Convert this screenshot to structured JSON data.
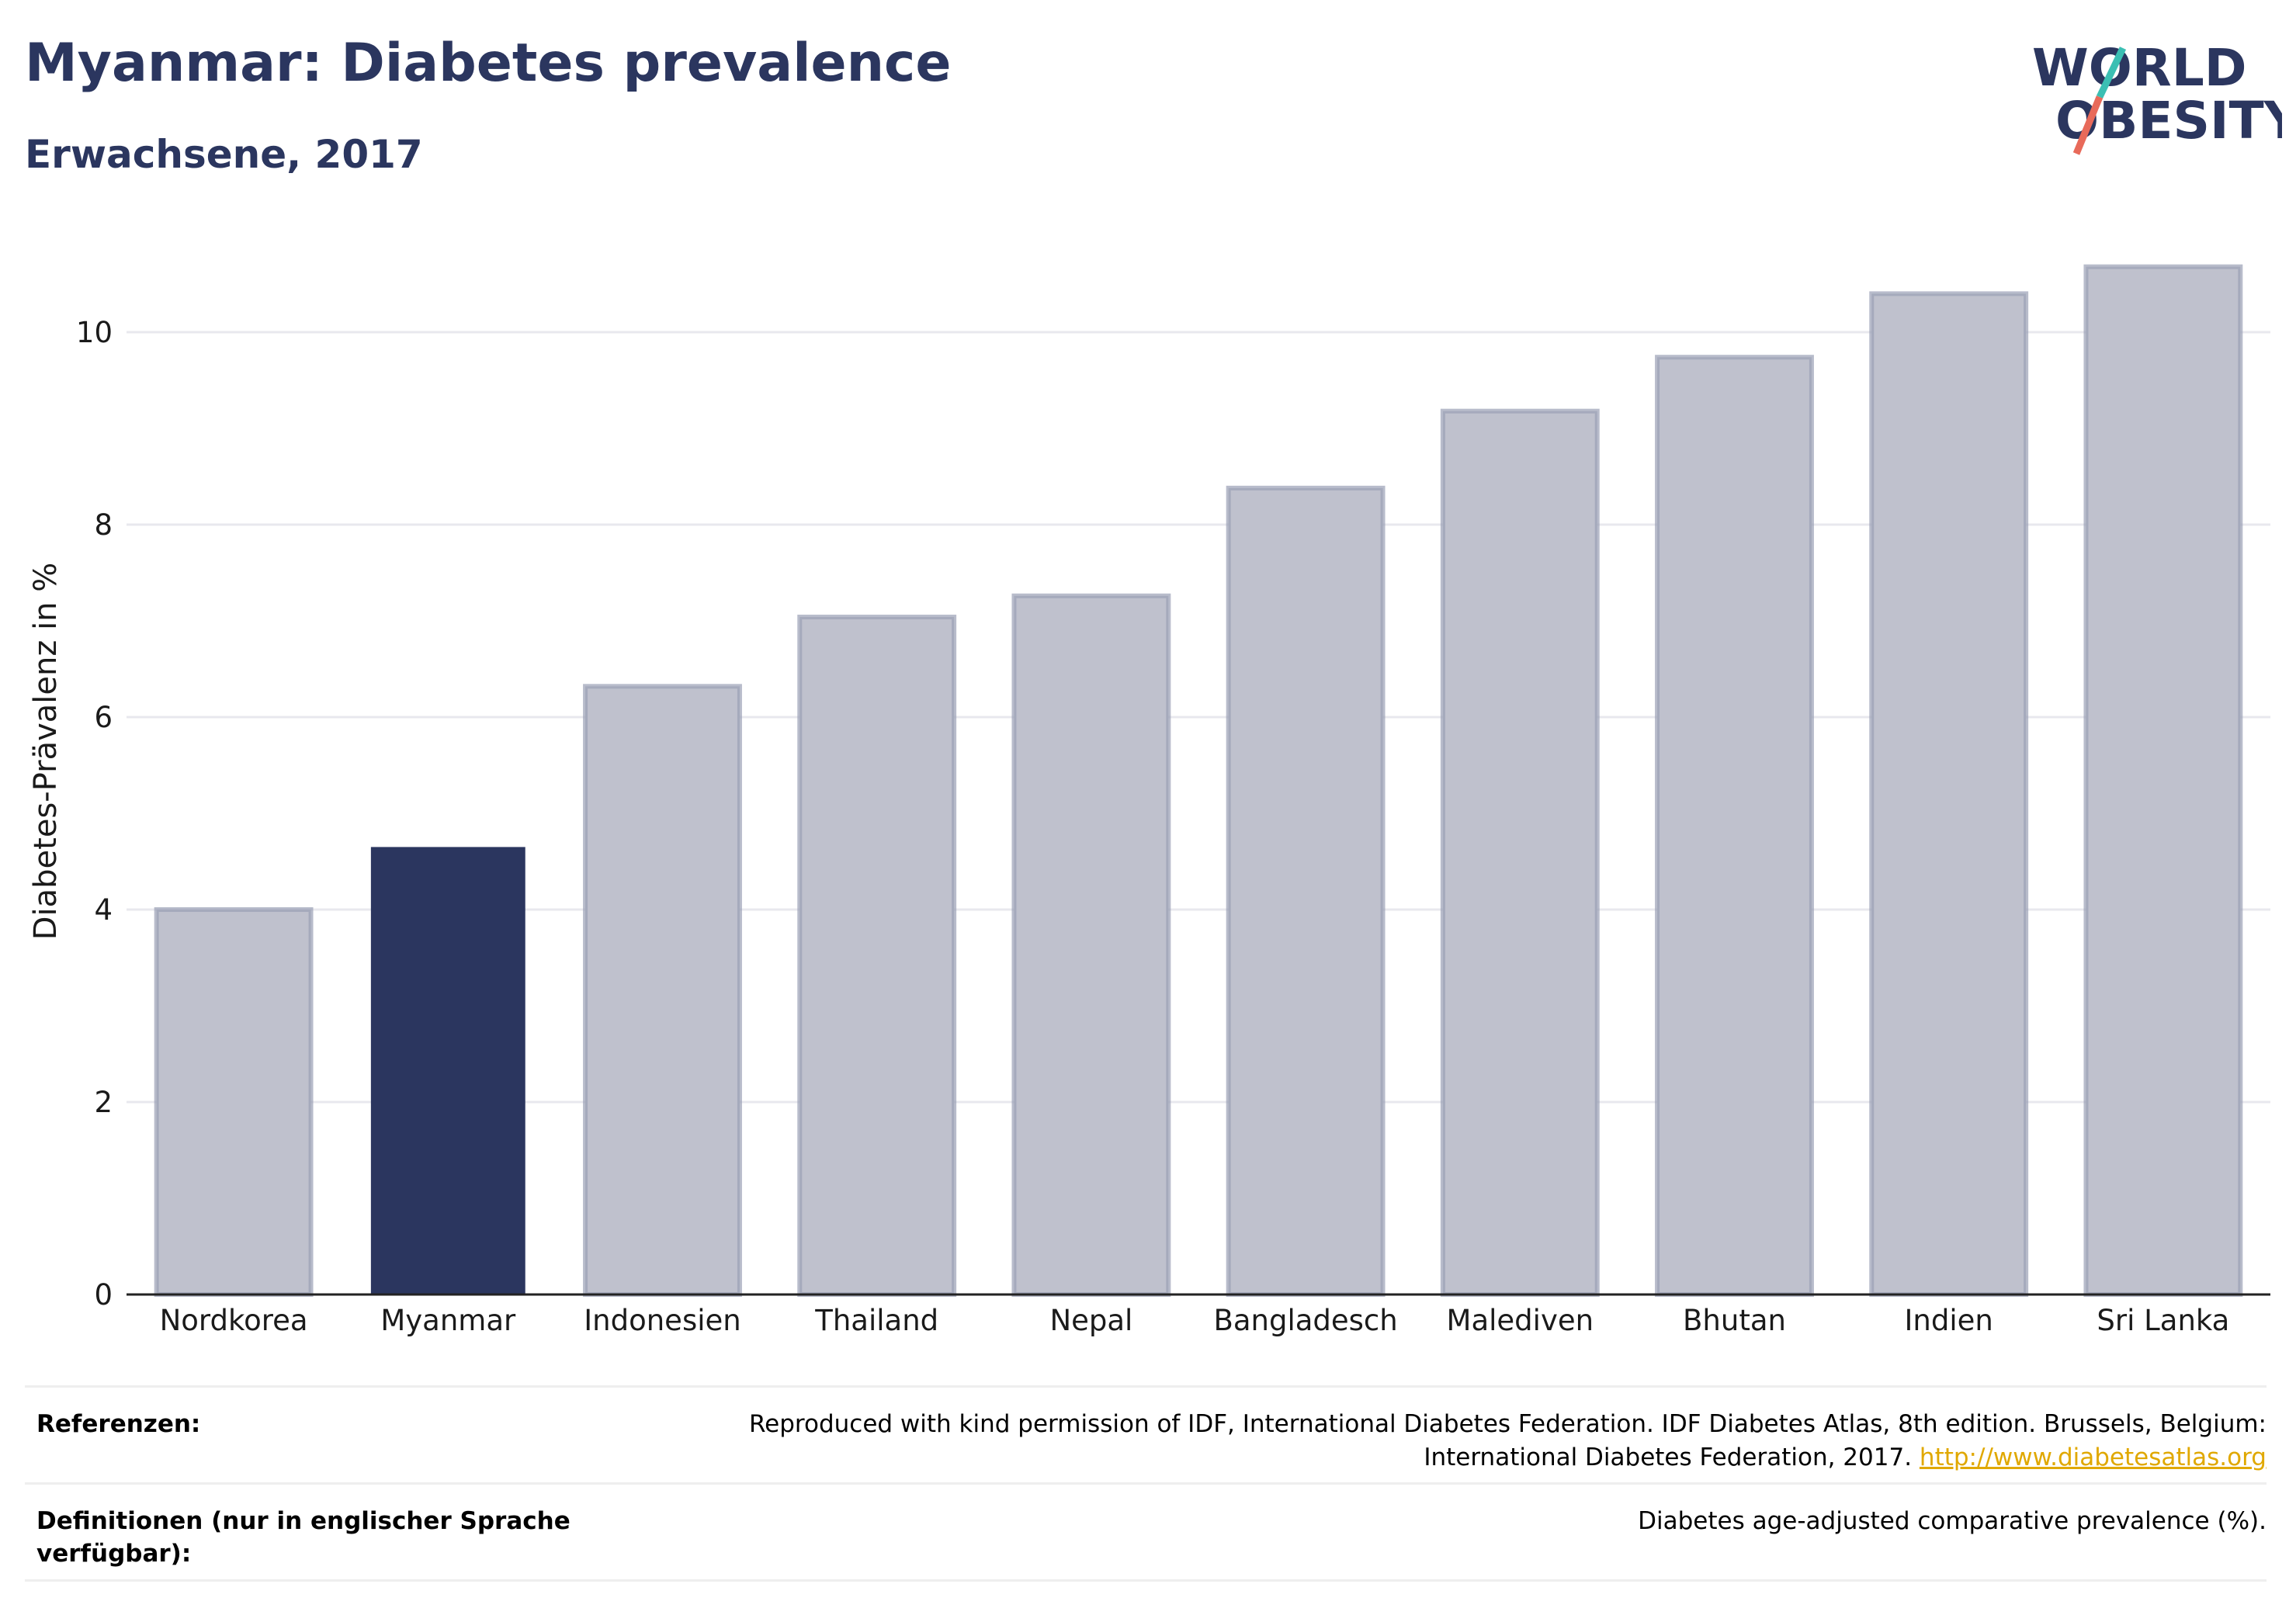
{
  "header": {
    "title": "Myanmar: Diabetes prevalence",
    "subtitle": "Erwachsene, 2017"
  },
  "logo": {
    "line1": "WORLD",
    "line2": "OBESITY",
    "icon": "world-obesity-logo"
  },
  "colors": {
    "highlight": "#2b365f",
    "others": "#bfc1cd",
    "others_border": "#9a9fb5",
    "brand_teal": "#3bbfb3",
    "brand_coral": "#e86a5a"
  },
  "chart_data": {
    "type": "bar",
    "title": "",
    "ylabel": "Diabetes-Prävalenz in %",
    "xlabel": "",
    "ylim": [
      0,
      11
    ],
    "yticks": [
      0,
      2,
      4,
      6,
      8,
      10
    ],
    "grid": true,
    "highlight": "Myanmar",
    "categories": [
      "Nordkorea",
      "Myanmar",
      "Indonesien",
      "Thailand",
      "Nepal",
      "Bangladesch",
      "Malediven",
      "Bhutan",
      "Indien",
      "Sri Lanka"
    ],
    "values": [
      4.0,
      4.65,
      6.32,
      7.04,
      7.26,
      8.38,
      9.18,
      9.74,
      10.4,
      10.68
    ]
  },
  "footer": {
    "references_label": "Referenzen:",
    "references_text": "Reproduced with kind permission of IDF, International Diabetes Federation. IDF Diabetes Atlas, 8th edition. Brussels, Belgium:",
    "references_text2": "International Diabetes Federation, 2017.",
    "references_link": "http://www.diabetesatlas.org",
    "definitions_label": "Definitionen (nur in englischer Sprache verfügbar):",
    "definitions_text": "Diabetes age-adjusted comparative prevalence (%)."
  }
}
